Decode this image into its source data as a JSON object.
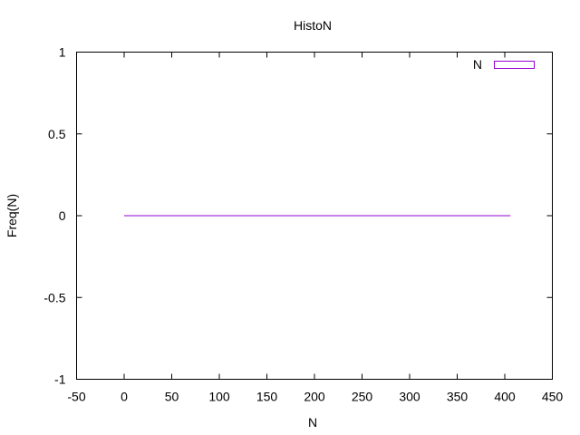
{
  "chart_data": {
    "type": "bar",
    "title": "HistoN",
    "xlabel": "N",
    "ylabel": "Freq(N)",
    "xlim": [
      -50,
      450
    ],
    "ylim": [
      -1,
      1
    ],
    "xticks": [
      -50,
      0,
      50,
      100,
      150,
      200,
      250,
      300,
      350,
      400,
      450
    ],
    "yticks": [
      -1,
      -0.5,
      0,
      0.5,
      1
    ],
    "grid": false,
    "legend_position": "top-right",
    "series": [
      {
        "name": "N",
        "color": "#9400d3",
        "x": [
          0,
          406
        ],
        "y": [
          0,
          0
        ]
      }
    ]
  }
}
